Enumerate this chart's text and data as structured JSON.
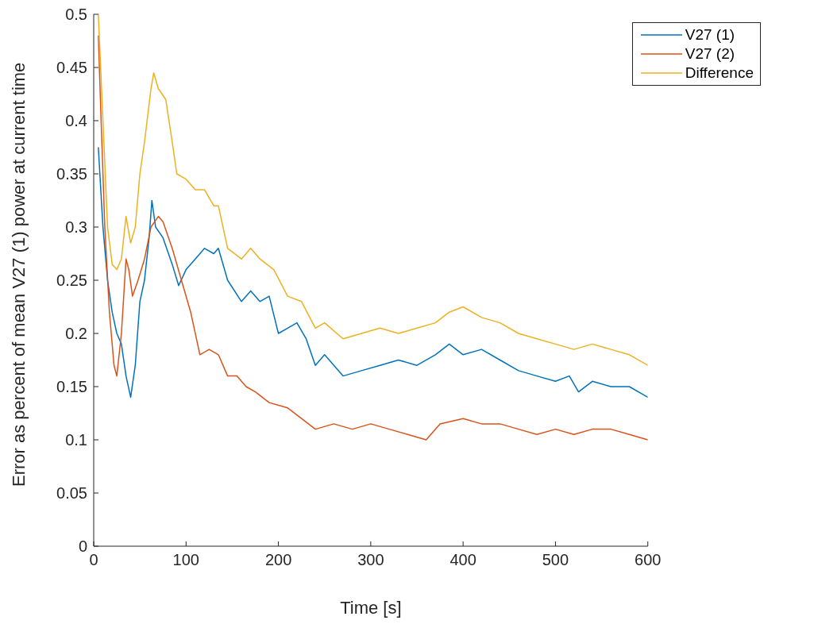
{
  "chart_data": {
    "type": "line",
    "xlabel": "Time [s]",
    "ylabel": "Error as percent of mean V27 (1) power at current time",
    "xlim": [
      0,
      600
    ],
    "xticks": [
      0,
      100,
      200,
      300,
      400,
      500,
      600
    ],
    "ylim": [
      0,
      0.5
    ],
    "yticks": [
      0,
      0.05,
      0.1,
      0.15,
      0.2,
      0.25,
      0.3,
      0.35,
      0.4,
      0.45,
      0.5
    ],
    "grid": false,
    "legend": "top right",
    "marker": "none",
    "line_style": "solid",
    "series": [
      {
        "name": "V27 (1)",
        "color": "#0072bd",
        "x": [
          5,
          10,
          15,
          20,
          25,
          30,
          35,
          40,
          45,
          50,
          55,
          60,
          63,
          67,
          75,
          85,
          92,
          100,
          110,
          120,
          130,
          135,
          145,
          160,
          170,
          180,
          190,
          200,
          210,
          220,
          230,
          240,
          250,
          270,
          290,
          310,
          330,
          350,
          370,
          385,
          400,
          420,
          440,
          460,
          480,
          500,
          515,
          525,
          540,
          560,
          580,
          600
        ],
        "values": [
          0.375,
          0.3,
          0.25,
          0.22,
          0.2,
          0.19,
          0.16,
          0.14,
          0.17,
          0.23,
          0.25,
          0.29,
          0.325,
          0.3,
          0.29,
          0.265,
          0.245,
          0.26,
          0.27,
          0.28,
          0.275,
          0.28,
          0.25,
          0.23,
          0.24,
          0.23,
          0.235,
          0.2,
          0.205,
          0.21,
          0.195,
          0.17,
          0.18,
          0.16,
          0.165,
          0.17,
          0.175,
          0.17,
          0.18,
          0.19,
          0.18,
          0.185,
          0.175,
          0.165,
          0.16,
          0.155,
          0.16,
          0.145,
          0.155,
          0.15,
          0.15,
          0.14
        ]
      },
      {
        "name": "V27 (2)",
        "color": "#d95319",
        "x": [
          5,
          8,
          12,
          17,
          22,
          25,
          30,
          35,
          38,
          42,
          48,
          55,
          62,
          70,
          75,
          85,
          95,
          105,
          115,
          125,
          135,
          145,
          155,
          165,
          175,
          190,
          210,
          225,
          240,
          260,
          280,
          300,
          320,
          340,
          360,
          375,
          400,
          420,
          440,
          460,
          480,
          500,
          520,
          540,
          560,
          580,
          600
        ],
        "values": [
          0.48,
          0.4,
          0.3,
          0.22,
          0.17,
          0.16,
          0.2,
          0.27,
          0.26,
          0.235,
          0.25,
          0.27,
          0.3,
          0.31,
          0.305,
          0.28,
          0.25,
          0.22,
          0.18,
          0.185,
          0.18,
          0.16,
          0.16,
          0.15,
          0.145,
          0.135,
          0.13,
          0.12,
          0.11,
          0.115,
          0.11,
          0.115,
          0.11,
          0.105,
          0.1,
          0.115,
          0.12,
          0.115,
          0.115,
          0.11,
          0.105,
          0.11,
          0.105,
          0.11,
          0.11,
          0.105,
          0.1
        ]
      },
      {
        "name": "Difference",
        "color": "#edb120",
        "x": [
          5,
          10,
          15,
          20,
          25,
          30,
          35,
          40,
          45,
          50,
          55,
          62,
          65,
          70,
          78,
          85,
          90,
          100,
          110,
          120,
          130,
          135,
          145,
          160,
          170,
          180,
          195,
          210,
          225,
          240,
          250,
          270,
          290,
          310,
          330,
          350,
          370,
          385,
          400,
          420,
          440,
          460,
          480,
          500,
          520,
          540,
          560,
          580,
          600
        ],
        "values": [
          0.5,
          0.4,
          0.3,
          0.265,
          0.26,
          0.27,
          0.31,
          0.285,
          0.3,
          0.35,
          0.38,
          0.43,
          0.445,
          0.43,
          0.42,
          0.38,
          0.35,
          0.345,
          0.335,
          0.335,
          0.32,
          0.32,
          0.28,
          0.27,
          0.28,
          0.27,
          0.26,
          0.235,
          0.23,
          0.205,
          0.21,
          0.195,
          0.2,
          0.205,
          0.2,
          0.205,
          0.21,
          0.22,
          0.225,
          0.215,
          0.21,
          0.2,
          0.195,
          0.19,
          0.185,
          0.19,
          0.185,
          0.18,
          0.17
        ]
      }
    ]
  }
}
